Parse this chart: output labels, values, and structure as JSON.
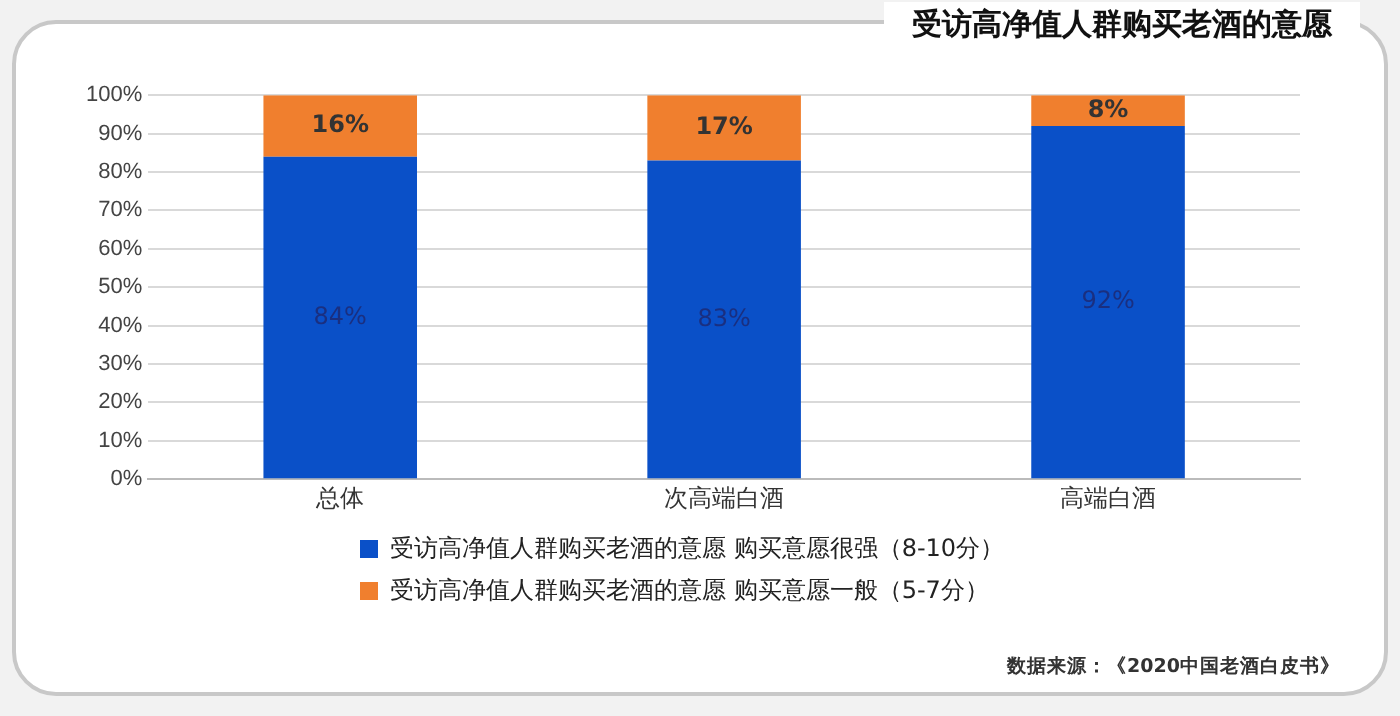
{
  "chart_data": {
    "type": "bar",
    "stacked": true,
    "title": "受访高净值人群购买老酒的意愿",
    "categories": [
      "总体",
      "次高端白酒",
      "高端白酒"
    ],
    "series": [
      {
        "name": "受访高净值人群购买老酒的意愿 购买意愿很强（8-10分）",
        "color": "#0a50c8",
        "values": [
          84,
          83,
          92
        ],
        "value_labels": [
          "84%",
          "83%",
          "92%"
        ]
      },
      {
        "name": "受访高净值人群购买老酒的意愿 购买意愿一般（5-7分）",
        "color": "#f07f2e",
        "values": [
          16,
          17,
          8
        ],
        "value_labels": [
          "16%",
          "17%",
          "8%"
        ]
      }
    ],
    "ylim": [
      0,
      100
    ],
    "yticks": [
      {
        "value": 0,
        "label": "0%"
      },
      {
        "value": 10,
        "label": "10%"
      },
      {
        "value": 20,
        "label": "20%"
      },
      {
        "value": 30,
        "label": "30%"
      },
      {
        "value": 40,
        "label": "40%"
      },
      {
        "value": 50,
        "label": "50%"
      },
      {
        "value": 60,
        "label": "60%"
      },
      {
        "value": 70,
        "label": "70%"
      },
      {
        "value": 80,
        "label": "80%"
      },
      {
        "value": 90,
        "label": "90%"
      },
      {
        "value": 100,
        "label": "100%"
      }
    ],
    "grid": "y",
    "legend": "bottom",
    "annotations": [
      "数据来源：《2020中国老酒白皮书》"
    ]
  }
}
